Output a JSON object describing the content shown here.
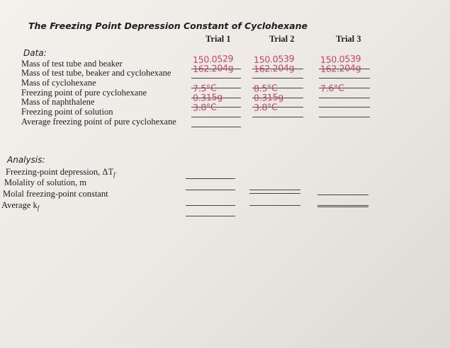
{
  "header": {
    "title": "The Freezing Point Depression Constant of Cyclohexane",
    "columns": [
      "Trial 1",
      "Trial 2",
      "Trial 3"
    ]
  },
  "data": {
    "label": "Data:",
    "rows": [
      {
        "label": "Mass of test tube and beaker",
        "entries": [
          "150.0529",
          "150.0539",
          "150.0539"
        ]
      },
      {
        "label": "Mass of test tube, beaker and cyclohexane",
        "entries": [
          "162.204g",
          "162.204g",
          "162.204g"
        ]
      },
      {
        "label": "Mass of cyclohexane",
        "entries": [
          null,
          null,
          null
        ]
      },
      {
        "label": "Freezing point of pure cyclohexane",
        "entries": [
          "7.5°C",
          "8.5°C",
          "7.6°C"
        ]
      },
      {
        "label": "Mass of naphthalene",
        "entries": [
          "0.315g",
          "0.315g",
          null
        ]
      },
      {
        "label": "Freezing point of solution",
        "entries": [
          "3.8°C",
          "3.8°C",
          null
        ]
      },
      {
        "label": "Average freezing point of pure cyclohexane",
        "entries": [
          null
        ]
      }
    ]
  },
  "analysis": {
    "label": "Analysis:",
    "rows": [
      {
        "label": "Freezing-point depression, ΔT",
        "sub": "f"
      },
      {
        "label": "Molality of solution, m"
      },
      {
        "label": "Molal freezing-point constant"
      },
      {
        "label": "Average k",
        "sub": "f"
      }
    ]
  }
}
